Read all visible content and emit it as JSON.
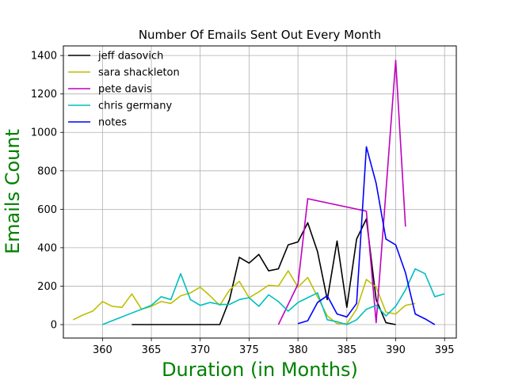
{
  "chart_data": {
    "type": "line",
    "title": "Number Of Emails Sent Out Every Month",
    "xlabel": "Duration (in Months)",
    "ylabel": "Emails Count",
    "label_color": "#008000",
    "xlim": [
      356,
      396.2
    ],
    "ylim": [
      -70,
      1450
    ],
    "xticks": [
      360,
      365,
      370,
      375,
      380,
      385,
      390,
      395
    ],
    "yticks": [
      0,
      200,
      400,
      600,
      800,
      1000,
      1200,
      1400
    ],
    "grid": true,
    "legend_position": "top-left",
    "series": [
      {
        "name": "jeff dasovich",
        "color": "#000000",
        "points": [
          [
            363,
            0
          ],
          [
            364,
            0
          ],
          [
            365,
            0
          ],
          [
            366,
            0
          ],
          [
            367,
            0
          ],
          [
            368,
            0
          ],
          [
            369,
            0
          ],
          [
            370,
            0
          ],
          [
            371,
            0
          ],
          [
            372,
            0
          ],
          [
            373,
            130
          ],
          [
            374,
            350
          ],
          [
            375,
            320
          ],
          [
            376,
            365
          ],
          [
            377,
            280
          ],
          [
            378,
            290
          ],
          [
            379,
            415
          ],
          [
            380,
            430
          ],
          [
            381,
            530
          ],
          [
            382,
            380
          ],
          [
            383,
            130
          ],
          [
            384,
            435
          ],
          [
            385,
            90
          ],
          [
            386,
            445
          ],
          [
            387,
            550
          ],
          [
            388,
            130
          ],
          [
            389,
            10
          ],
          [
            390,
            0
          ]
        ]
      },
      {
        "name": "sara shackleton",
        "color": "#bfbf00",
        "points": [
          [
            357,
            25
          ],
          [
            358,
            50
          ],
          [
            359,
            70
          ],
          [
            360,
            120
          ],
          [
            361,
            95
          ],
          [
            362,
            90
          ],
          [
            363,
            160
          ],
          [
            364,
            80
          ],
          [
            365,
            95
          ],
          [
            366,
            120
          ],
          [
            367,
            110
          ],
          [
            368,
            150
          ],
          [
            369,
            165
          ],
          [
            370,
            195
          ],
          [
            371,
            150
          ],
          [
            372,
            100
          ],
          [
            373,
            180
          ],
          [
            374,
            225
          ],
          [
            375,
            140
          ],
          [
            376,
            170
          ],
          [
            377,
            205
          ],
          [
            378,
            200
          ],
          [
            379,
            280
          ],
          [
            380,
            195
          ],
          [
            381,
            245
          ],
          [
            382,
            145
          ],
          [
            383,
            45
          ],
          [
            384,
            5
          ],
          [
            385,
            5
          ],
          [
            386,
            80
          ],
          [
            387,
            235
          ],
          [
            388,
            195
          ],
          [
            389,
            65
          ],
          [
            390,
            55
          ],
          [
            391,
            100
          ],
          [
            392,
            110
          ]
        ]
      },
      {
        "name": "pete davis",
        "color": "#bf00bf",
        "points": [
          [
            378,
            0
          ],
          [
            380,
            210
          ],
          [
            381,
            655
          ],
          [
            387,
            590
          ],
          [
            388,
            10
          ],
          [
            390,
            1375
          ],
          [
            391,
            510
          ]
        ]
      },
      {
        "name": "chris germany",
        "color": "#00bfbf",
        "points": [
          [
            360,
            0
          ],
          [
            361,
            20
          ],
          [
            362,
            40
          ],
          [
            363,
            60
          ],
          [
            364,
            80
          ],
          [
            365,
            100
          ],
          [
            366,
            145
          ],
          [
            367,
            130
          ],
          [
            368,
            265
          ],
          [
            369,
            130
          ],
          [
            370,
            100
          ],
          [
            371,
            115
          ],
          [
            372,
            105
          ],
          [
            373,
            105
          ],
          [
            374,
            130
          ],
          [
            375,
            140
          ],
          [
            376,
            95
          ],
          [
            377,
            155
          ],
          [
            378,
            120
          ],
          [
            379,
            70
          ],
          [
            380,
            115
          ],
          [
            381,
            140
          ],
          [
            382,
            165
          ],
          [
            383,
            25
          ],
          [
            384,
            15
          ],
          [
            385,
            0
          ],
          [
            386,
            25
          ],
          [
            387,
            80
          ],
          [
            388,
            100
          ],
          [
            389,
            45
          ],
          [
            390,
            95
          ],
          [
            391,
            180
          ],
          [
            392,
            290
          ],
          [
            393,
            265
          ],
          [
            394,
            145
          ],
          [
            395,
            160
          ]
        ]
      },
      {
        "name": "notes",
        "color": "#0000ff",
        "points": [
          [
            380,
            5
          ],
          [
            381,
            20
          ],
          [
            382,
            115
          ],
          [
            383,
            150
          ],
          [
            384,
            55
          ],
          [
            385,
            40
          ],
          [
            386,
            110
          ],
          [
            387,
            925
          ],
          [
            388,
            735
          ],
          [
            389,
            445
          ],
          [
            390,
            415
          ],
          [
            391,
            270
          ],
          [
            392,
            55
          ],
          [
            393,
            30
          ],
          [
            394,
            0
          ]
        ]
      }
    ]
  }
}
